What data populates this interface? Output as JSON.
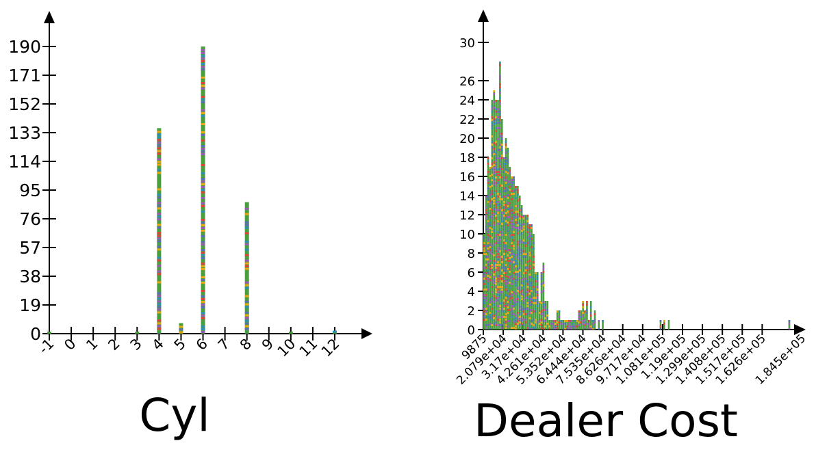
{
  "chart_data": [
    {
      "type": "bar",
      "title": "Cyl",
      "x_ticks": [
        "-1",
        "0",
        "1",
        "2",
        "3",
        "4",
        "5",
        "6",
        "7",
        "8",
        "9",
        "10",
        "11",
        "12"
      ],
      "y_ticks": [
        "0",
        "19",
        "38",
        "57",
        "76",
        "95",
        "114",
        "133",
        "152",
        "171",
        "190"
      ],
      "x": [
        -1,
        3,
        4,
        5,
        6,
        8,
        10,
        12
      ],
      "values": [
        1,
        1,
        136,
        7,
        190,
        87,
        1,
        2
      ],
      "xlim": [
        -1,
        12
      ],
      "ylim": [
        0,
        190
      ],
      "grid": false
    },
    {
      "type": "bar",
      "title": "Dealer Cost",
      "x_ticks": [
        "9875",
        "2.079e+04",
        "3.17e+04",
        "4.261e+04",
        "5.352e+04",
        "6.444e+04",
        "7.535e+04",
        "8.626e+04",
        "9.717e+04",
        "1.081e+05",
        "1.19e+05",
        "1.299e+05",
        "1.408e+05",
        "1.517e+05",
        "1.626e+05",
        "1.845e+05"
      ],
      "y_ticks": [
        "0",
        "2",
        "4",
        "6",
        "8",
        "10",
        "12",
        "14",
        "16",
        "18",
        "20",
        "22",
        "24",
        "26",
        "30"
      ],
      "x": [
        9875,
        10957,
        12040,
        13122,
        14205,
        15287,
        16370,
        17452,
        18535,
        19617,
        20700,
        21782,
        22865,
        23947,
        25030,
        26112,
        27195,
        28277,
        29360,
        30442,
        31525,
        32607,
        33690,
        34772,
        35855,
        36937,
        38020,
        39102,
        40185,
        41267,
        42350,
        43432,
        44515,
        45597,
        46680,
        47762,
        48845,
        49927,
        51010,
        52092,
        53175,
        54257,
        55340,
        56422,
        57505,
        58587,
        59670,
        60752,
        61835,
        62917,
        64000,
        65082,
        66165,
        67247,
        68330,
        69412,
        70495,
        72660,
        74825,
        106500,
        108500,
        111000,
        177000
      ],
      "values": [
        10,
        14,
        18,
        17,
        24,
        25,
        24,
        24,
        28,
        22,
        18,
        20,
        19,
        17,
        16,
        16,
        15,
        15,
        14,
        13,
        12,
        12,
        12,
        11,
        11,
        10,
        6,
        6,
        3,
        6,
        7,
        3,
        3,
        1,
        1,
        1,
        1,
        2,
        2,
        1,
        1,
        1,
        1,
        1,
        1,
        1,
        1,
        1,
        2,
        2,
        3,
        2,
        3,
        1,
        3,
        1,
        2,
        1,
        1,
        1,
        1,
        1,
        1
      ],
      "ylim": [
        0,
        30
      ],
      "grid": false
    }
  ]
}
